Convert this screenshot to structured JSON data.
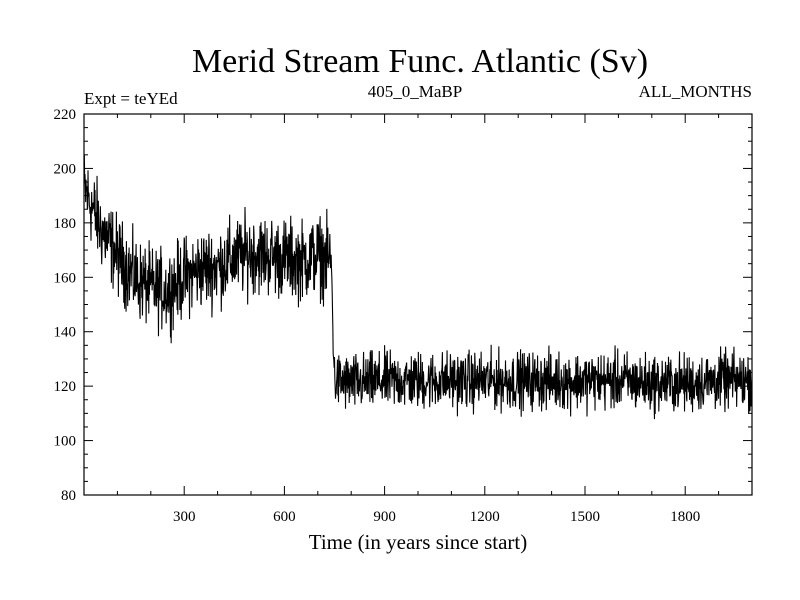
{
  "chart_data": {
    "type": "line",
    "title": "Merid Stream Func. Atlantic (Sv)",
    "left_label": "Expt = teYEd",
    "center_label": "405_0_MaBP",
    "right_label": "ALL_MONTHS",
    "xlabel": "Time (in years since start)",
    "ylabel": "",
    "xlim": [
      0,
      2000
    ],
    "ylim": [
      80,
      220
    ],
    "x_ticks": [
      300,
      600,
      900,
      1200,
      1500,
      1800
    ],
    "y_ticks": [
      80,
      100,
      120,
      140,
      160,
      180,
      200,
      220
    ],
    "grid": false,
    "legend": "none",
    "line_color": "#000000",
    "series": [
      {
        "x": [
          0,
          50,
          100,
          150,
          200,
          250,
          300,
          350,
          400,
          450,
          500,
          550,
          600,
          650,
          700,
          740,
          750,
          800,
          900,
          1000,
          1100,
          1200,
          1300,
          1400,
          1500,
          1600,
          1700,
          1800,
          1900,
          2000
        ],
        "values": [
          193,
          178,
          168,
          160,
          156,
          155,
          160,
          163,
          164,
          167,
          169,
          168,
          167,
          166,
          168,
          166,
          122,
          121,
          122,
          122,
          122,
          122,
          122,
          122,
          122,
          122,
          121,
          121,
          122,
          122
        ]
      }
    ]
  }
}
